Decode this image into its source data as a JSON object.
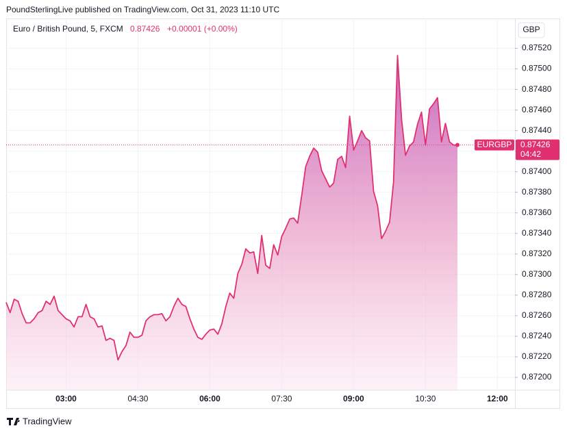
{
  "chart_data": {
    "type": "area",
    "title": "PoundSterlingLive published on TradingView.com, Oct 31, 2023 11:10 UTC",
    "symbol": "Euro / British Pound, 5, FXCM",
    "ticker": "EURGBP",
    "currency": "GBP",
    "last_price": 0.87426,
    "last_price_label": "0.87426",
    "change": "+0.00001 (+0.00%)",
    "countdown": "04:42",
    "brand": "TradingView",
    "color": "#e0306f",
    "grid": true,
    "x": [
      "01:45",
      "01:50",
      "01:55",
      "02:00",
      "02:05",
      "02:10",
      "02:15",
      "02:20",
      "02:25",
      "02:30",
      "02:35",
      "02:40",
      "02:45",
      "02:50",
      "02:55",
      "03:00",
      "03:05",
      "03:10",
      "03:15",
      "03:20",
      "03:25",
      "03:30",
      "03:35",
      "03:40",
      "03:45",
      "03:50",
      "03:55",
      "04:00",
      "04:05",
      "04:10",
      "04:15",
      "04:20",
      "04:25",
      "04:30",
      "04:35",
      "04:40",
      "04:45",
      "04:50",
      "04:55",
      "05:00",
      "05:05",
      "05:10",
      "05:15",
      "05:20",
      "05:25",
      "05:30",
      "05:35",
      "05:40",
      "05:45",
      "05:50",
      "05:55",
      "06:00",
      "06:05",
      "06:10",
      "06:15",
      "06:20",
      "06:25",
      "06:30",
      "06:35",
      "06:40",
      "06:45",
      "06:50",
      "06:55",
      "07:00",
      "07:05",
      "07:10",
      "07:15",
      "07:20",
      "07:25",
      "07:30",
      "07:35",
      "07:40",
      "07:45",
      "07:50",
      "07:55",
      "08:00",
      "08:05",
      "08:10",
      "08:15",
      "08:20",
      "08:25",
      "08:30",
      "08:35",
      "08:40",
      "08:45",
      "08:50",
      "08:55",
      "09:00",
      "09:05",
      "09:10",
      "09:15",
      "09:20",
      "09:25",
      "09:30",
      "09:35",
      "09:40",
      "09:45",
      "09:50",
      "09:55",
      "10:00",
      "10:05",
      "10:10",
      "10:15",
      "10:20",
      "10:25",
      "10:30",
      "10:35",
      "10:40",
      "10:45",
      "10:50",
      "10:55",
      "11:00",
      "11:05",
      "11:10"
    ],
    "values": [
      0.87273,
      0.87263,
      0.87276,
      0.87274,
      0.87262,
      0.87253,
      0.87253,
      0.87257,
      0.87263,
      0.87265,
      0.87274,
      0.87271,
      0.87279,
      0.87265,
      0.87261,
      0.87257,
      0.87255,
      0.87249,
      0.87259,
      0.87259,
      0.87271,
      0.87259,
      0.87257,
      0.87249,
      0.8725,
      0.87236,
      0.87238,
      0.87236,
      0.87217,
      0.87225,
      0.87231,
      0.87244,
      0.87239,
      0.87239,
      0.87241,
      0.87255,
      0.87259,
      0.87261,
      0.87261,
      0.87262,
      0.87255,
      0.87259,
      0.87269,
      0.87277,
      0.87271,
      0.87269,
      0.87257,
      0.87247,
      0.87239,
      0.87237,
      0.87242,
      0.87246,
      0.87247,
      0.87242,
      0.87252,
      0.87269,
      0.87282,
      0.87277,
      0.87301,
      0.8731,
      0.87325,
      0.87321,
      0.87322,
      0.87301,
      0.87338,
      0.87309,
      0.87306,
      0.87329,
      0.87319,
      0.87337,
      0.87345,
      0.87354,
      0.87355,
      0.8735,
      0.87377,
      0.87405,
      0.87415,
      0.87423,
      0.87419,
      0.87401,
      0.87393,
      0.87385,
      0.87389,
      0.87412,
      0.87415,
      0.87404,
      0.87454,
      0.87421,
      0.8743,
      0.8744,
      0.87433,
      0.8743,
      0.87381,
      0.87367,
      0.87335,
      0.87342,
      0.87351,
      0.8739,
      0.87513,
      0.87451,
      0.87416,
      0.87425,
      0.87429,
      0.87446,
      0.87458,
      0.87426,
      0.87461,
      0.87466,
      0.87472,
      0.87429,
      0.87447,
      0.87429,
      0.87426,
      0.87426
    ],
    "xlim": [
      "01:45",
      "12:22"
    ],
    "xticks": [
      "03:00",
      "04:30",
      "06:00",
      "07:30",
      "09:00",
      "10:30",
      "12:00"
    ],
    "ylim": [
      0.87188,
      0.87549
    ],
    "yticks": [
      {
        "value": 0.872,
        "label": "0.87200"
      },
      {
        "value": 0.8722,
        "label": "0.87220"
      },
      {
        "value": 0.8724,
        "label": "0.87240"
      },
      {
        "value": 0.8726,
        "label": "0.87260"
      },
      {
        "value": 0.8728,
        "label": "0.87280"
      },
      {
        "value": 0.873,
        "label": "0.87300"
      },
      {
        "value": 0.8732,
        "label": "0.87320"
      },
      {
        "value": 0.8734,
        "label": "0.87340"
      },
      {
        "value": 0.8736,
        "label": "0.87360"
      },
      {
        "value": 0.8738,
        "label": "0.87380"
      },
      {
        "value": 0.874,
        "label": "0.87400"
      },
      {
        "value": 0.8742,
        "label": "0.87420"
      },
      {
        "value": 0.8744,
        "label": "0.87440"
      },
      {
        "value": 0.8746,
        "label": "0.87460"
      },
      {
        "value": 0.8748,
        "label": "0.87480"
      },
      {
        "value": 0.875,
        "label": "0.87500"
      },
      {
        "value": 0.8752,
        "label": "0.87520"
      }
    ]
  }
}
